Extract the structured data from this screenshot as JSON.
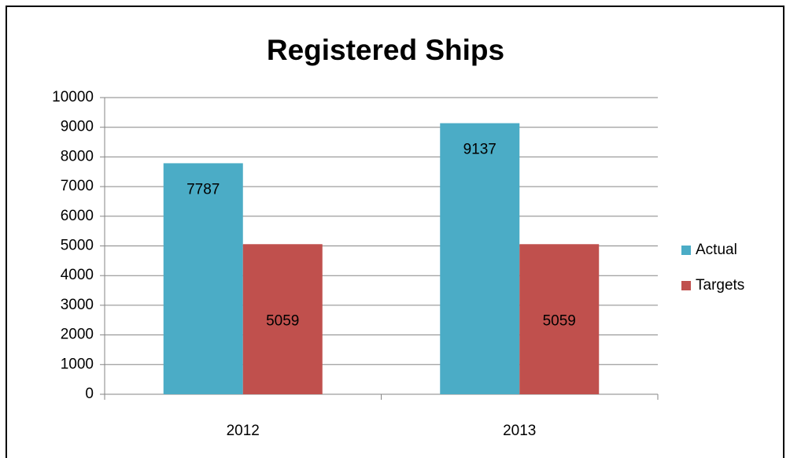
{
  "chart_data": {
    "type": "bar",
    "title": "Registered Ships",
    "categories": [
      "2012",
      "2013"
    ],
    "series": [
      {
        "name": "Actual",
        "color": "#4bacc6",
        "values": [
          7787,
          9137
        ]
      },
      {
        "name": "Targets",
        "color": "#c0504d",
        "values": [
          5059,
          5059
        ]
      }
    ],
    "ylim": [
      0,
      10000
    ],
    "yticks": [
      0,
      1000,
      2000,
      3000,
      4000,
      5000,
      6000,
      7000,
      8000,
      9000,
      10000
    ],
    "grid": true,
    "legend": "right",
    "data_labels": true
  }
}
